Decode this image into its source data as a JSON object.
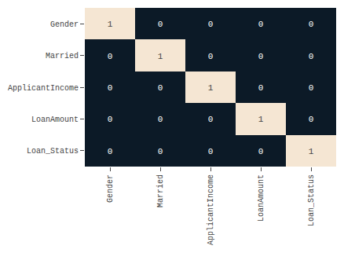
{
  "chart_data": {
    "type": "heatmap",
    "categories": [
      "Gender",
      "Married",
      "ApplicantIncome",
      "LoanAmount",
      "Loan_Status"
    ],
    "cells": [
      [
        1,
        0,
        0,
        0,
        0
      ],
      [
        0,
        1,
        0,
        0,
        0
      ],
      [
        0,
        0,
        1,
        0,
        0
      ],
      [
        0,
        0,
        0,
        1,
        0
      ],
      [
        0,
        0,
        0,
        0,
        1
      ]
    ],
    "zlim": [
      0,
      1
    ],
    "colors": [
      "#0c1a27",
      "#f5e6d3"
    ],
    "data_labels": true,
    "grid": false
  }
}
